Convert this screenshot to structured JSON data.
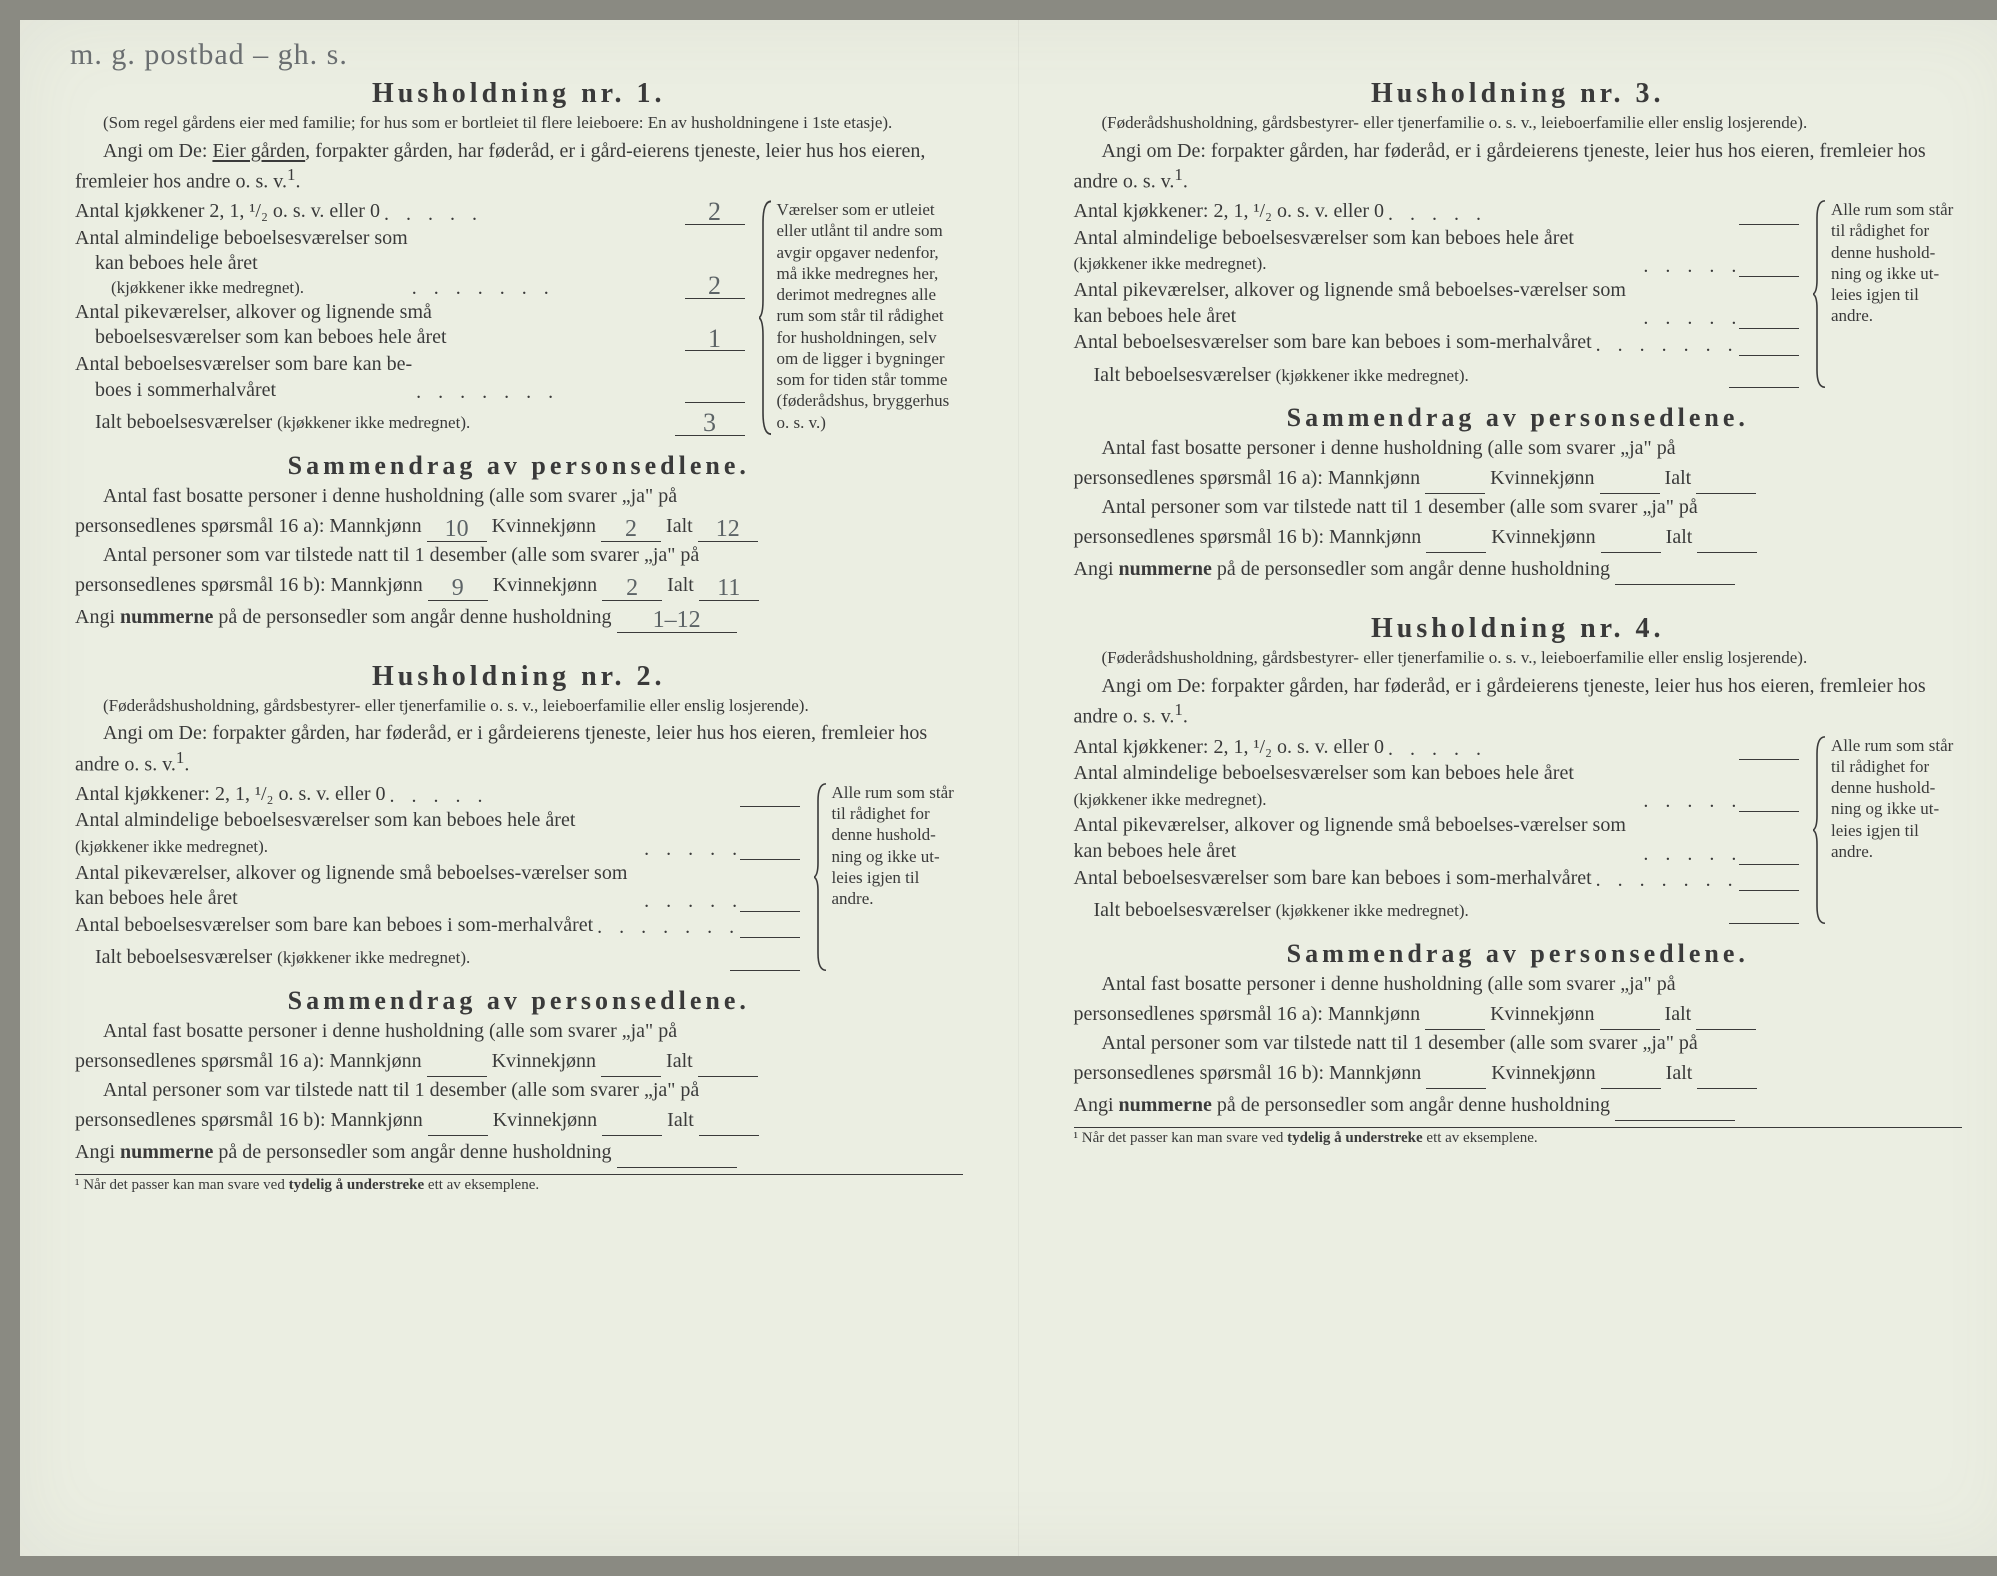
{
  "handwritten_top": "m. g. postbad – gh. s.",
  "household_labels": {
    "title_prefix": "Husholdning nr.",
    "subnote_1": "(Som regel gårdens eier med familie; for hus som er bortleiet til flere leieboere: En av husholdningene i 1ste etasje).",
    "subnote_other": "(Føderådshusholdning, gårdsbestyrer- eller tjenerfamilie o. s. v., leieboerfamilie eller enslig losjerende).",
    "angi_1_a": "Angi om De:  ",
    "angi_1_b": "Eier gården",
    "angi_1_c": ", forpakter gården, har føderåd, er i gård-eierens tjeneste, leier hus hos eieren, fremleier hos andre o. s. v.",
    "angi_other": "Angi om De:  forpakter gården, har føderåd, er i gårdeierens tjeneste, leier hus hos eieren, fremleier hos andre o. s. v.",
    "sup1": "1",
    "q_kitchens_1": "Antal kjøkkener 2, 1, ¹/₂ o. s. v. eller 0",
    "q_kitchens_other": "Antal kjøkkener: 2, 1, ¹/₂ o. s. v. eller 0",
    "q_rooms_a": "Antal almindelige beboelsesværelser som",
    "q_rooms_a2_1": "kan beboes hele året",
    "q_rooms_a2_other": "Antal almindelige beboelsesværelser som kan beboes hele året",
    "q_rooms_a_sub": "(kjøkkener ikke medregnet).",
    "q_maid_1a": "Antal pikeværelser, alkover og lignende små",
    "q_maid_1b": "beboelsesværelser som kan beboes hele året",
    "q_maid_other": "Antal pikeværelser, alkover og lignende små beboelses-værelser som kan beboes hele året",
    "q_summer_1a": "Antal beboelsesværelser som bare kan be-",
    "q_summer_1b": "boes i sommerhalvåret",
    "q_summer_other": "Antal beboelsesværelser som bare kan beboes i som-merhalvåret",
    "q_total": "Ialt beboelsesværelser",
    "q_total_sub": "(kjøkkener ikke medregnet).",
    "side_1": "Værelser som er utleiet eller utlånt til andre som avgir opgaver nedenfor, må ikke medregnes her, derimot medregnes alle rum som står til rådighet for husholdningen, selv om de ligger i bygninger som for tiden står tomme (føderådshus, bryggerhus o. s. v.)",
    "side_other": "Alle rum som står til rådighet for denne hushold-ning og ikke ut-leies igjen til andre.",
    "summary_title": "Sammendrag av personsedlene.",
    "s_line1": "Antal fast bosatte personer i denne husholdning (alle som svarer „ja\" på",
    "s_line1b": "personsedlenes spørsmål 16 a): Mannkjønn",
    "s_kvinne": "Kvinnekjønn",
    "s_ialt": "Ialt",
    "s_line2": "Antal personer som var tilstede natt til 1 desember (alle som svarer „ja\" på",
    "s_line2b": "personsedlenes spørsmål 16 b): Mannkjønn",
    "s_nummer_a": "Angi ",
    "s_nummer_b": "nummerne",
    "s_nummer_c": " på de personsedler som angår denne husholdning",
    "footnote": "¹  Når det passer kan man svare ved ",
    "footnote_b": "tydelig å understreke",
    "footnote_c": " ett av eksemplene."
  },
  "households": [
    {
      "nr": "1.",
      "is_first": true,
      "fills": {
        "kitchens": "2",
        "rooms": "2",
        "maid": "1",
        "summer": "",
        "total": "3"
      },
      "summary_a": {
        "m": "10",
        "k": "2",
        "total": "12"
      },
      "summary_b": {
        "m": "9",
        "k": "2",
        "total": "11"
      },
      "numbers": "1–12"
    },
    {
      "nr": "2.",
      "is_first": false,
      "fills": {
        "kitchens": "",
        "rooms": "",
        "maid": "",
        "summer": "",
        "total": ""
      },
      "summary_a": {
        "m": "",
        "k": "",
        "total": ""
      },
      "summary_b": {
        "m": "",
        "k": "",
        "total": ""
      },
      "numbers": ""
    },
    {
      "nr": "3.",
      "is_first": false,
      "fills": {
        "kitchens": "",
        "rooms": "",
        "maid": "",
        "summer": "",
        "total": ""
      },
      "summary_a": {
        "m": "",
        "k": "",
        "total": ""
      },
      "summary_b": {
        "m": "",
        "k": "",
        "total": ""
      },
      "numbers": ""
    },
    {
      "nr": "4.",
      "is_first": false,
      "fills": {
        "kitchens": "",
        "rooms": "",
        "maid": "",
        "summer": "",
        "total": ""
      },
      "summary_a": {
        "m": "",
        "k": "",
        "total": ""
      },
      "summary_b": {
        "m": "",
        "k": "",
        "total": ""
      },
      "numbers": ""
    }
  ]
}
